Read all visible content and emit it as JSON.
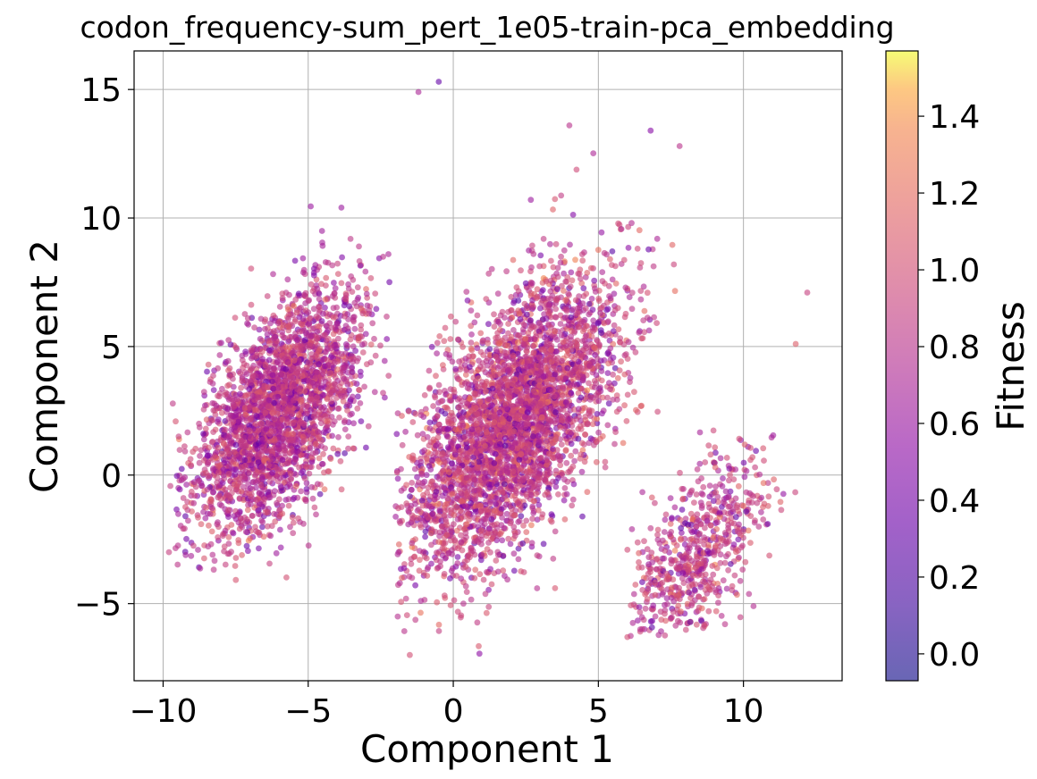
{
  "chart_data": {
    "type": "scatter",
    "title": "codon_frequency-sum_pert_1e05-train-pca_embedding",
    "xlabel": "Component 1",
    "ylabel": "Component 2",
    "xlim": [
      -11,
      13.4
    ],
    "ylim": [
      -8,
      16.5
    ],
    "xticks": [
      -10,
      -5,
      0,
      5,
      10
    ],
    "yticks": [
      -5,
      0,
      5,
      10,
      15
    ],
    "xtick_labels": [
      "−10",
      "−5",
      "0",
      "5",
      "10"
    ],
    "ytick_labels": [
      "−5",
      "0",
      "5",
      "10",
      "15"
    ],
    "grid": true,
    "colormap": "plasma",
    "point_alpha": 0.6,
    "colorbar": {
      "label": "Fitness",
      "range": [
        -0.07,
        1.57
      ],
      "ticks": [
        0.0,
        0.2,
        0.4,
        0.6,
        0.8,
        1.0,
        1.2,
        1.4
      ],
      "tick_labels": [
        "0.0",
        "0.2",
        "0.4",
        "0.6",
        "0.8",
        "1.0",
        "1.2",
        "1.4"
      ]
    },
    "clusters": [
      {
        "name": "",
        "count": 2600,
        "x_range": [
          -9.8,
          -2.2
        ],
        "y_range": [
          -4.6,
          12.5
        ],
        "x_center": -6.0,
        "y_center": 2.5,
        "mean_fitness": 0.85
      },
      {
        "name": "",
        "count": 3600,
        "x_range": [
          -2.0,
          7.8
        ],
        "y_range": [
          -7.0,
          13.6
        ],
        "x_center": 2.0,
        "y_center": 2.0,
        "mean_fitness": 0.9
      },
      {
        "name": "",
        "count": 650,
        "x_range": [
          6.0,
          12.2
        ],
        "y_range": [
          -6.3,
          7.1
        ],
        "x_center": 8.4,
        "y_center": -3.0,
        "mean_fitness": 0.9
      }
    ],
    "points": [
      {
        "x": -0.5,
        "y": 15.3,
        "fitness": 0.3
      },
      {
        "x": -1.2,
        "y": 14.9,
        "fitness": 0.7
      },
      {
        "x": 4.0,
        "y": 13.6,
        "fitness": 0.8
      },
      {
        "x": 6.8,
        "y": 13.4,
        "fitness": 0.5
      },
      {
        "x": 12.2,
        "y": 7.1,
        "fitness": 0.9
      },
      {
        "x": -9.8,
        "y": -3.0,
        "fitness": 0.9
      },
      {
        "x": -1.5,
        "y": -7.0,
        "fitness": 1.0
      },
      {
        "x": 6.0,
        "y": -6.3,
        "fitness": 1.0
      },
      {
        "x": 7.8,
        "y": 12.8,
        "fitness": 0.8
      },
      {
        "x": 11.8,
        "y": 5.1,
        "fitness": 1.1
      }
    ]
  }
}
